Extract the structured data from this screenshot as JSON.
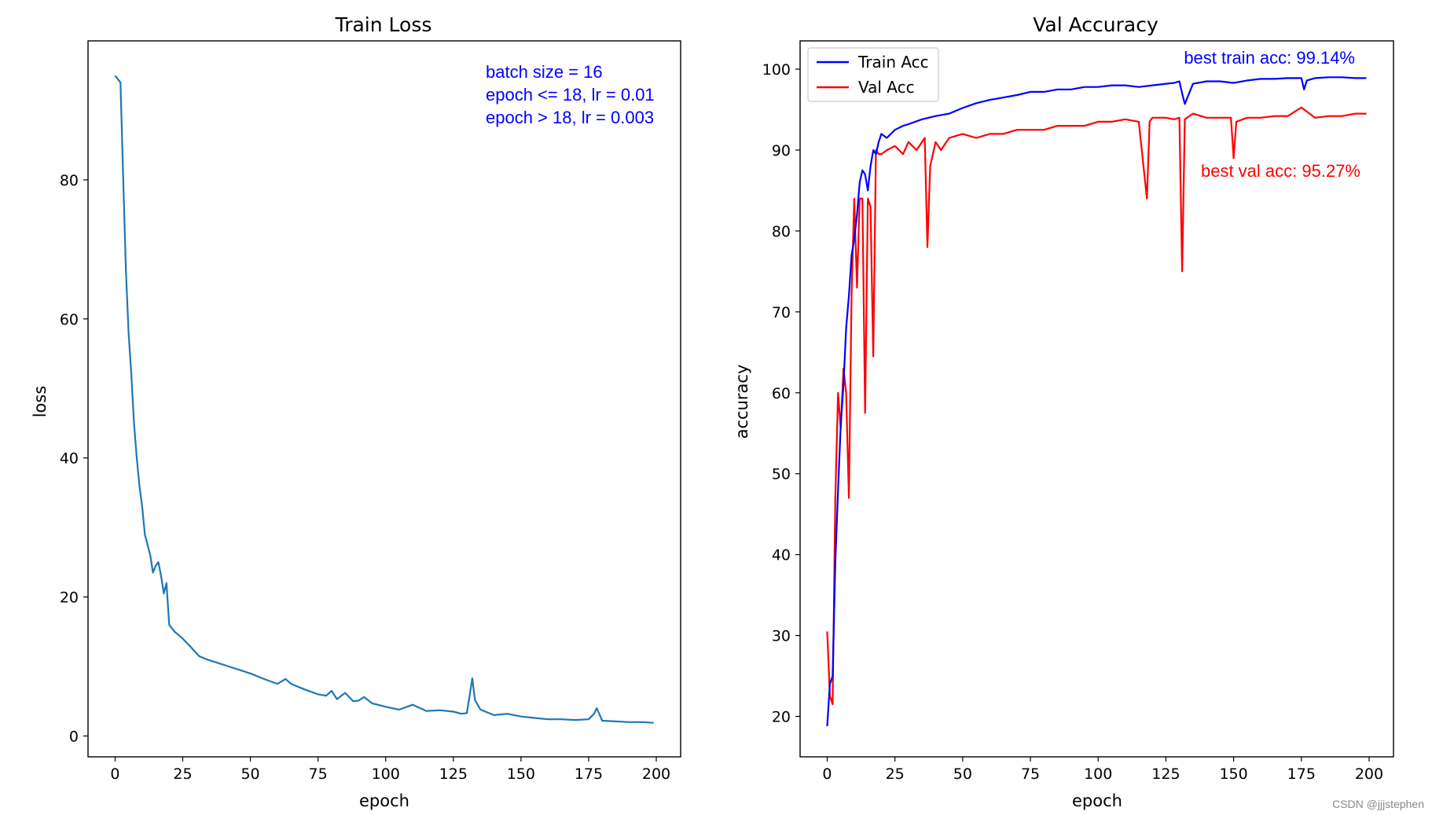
{
  "watermark": "CSDN @jjjstephen",
  "chart_data": [
    {
      "type": "line",
      "title": "Train Loss",
      "xlabel": "epoch",
      "ylabel": "loss",
      "xlim": [
        -10,
        209
      ],
      "ylim": [
        -3,
        100
      ],
      "xticks": [
        0,
        25,
        50,
        75,
        100,
        125,
        150,
        175,
        200
      ],
      "yticks": [
        0,
        20,
        40,
        60,
        80
      ],
      "annotations": [
        "batch size = 16",
        "epoch <= 18, lr = 0.01",
        "epoch > 18, lr = 0.003"
      ],
      "series": [
        {
          "name": "loss",
          "color": "#1f77b4",
          "x": [
            0,
            1,
            2,
            3,
            4,
            5,
            6,
            7,
            8,
            9,
            10,
            11,
            12,
            13,
            14,
            15,
            16,
            17,
            18,
            19,
            20,
            22,
            25,
            28,
            31,
            34,
            38,
            42,
            46,
            50,
            55,
            60,
            63,
            65,
            70,
            75,
            78,
            80,
            82,
            85,
            88,
            90,
            92,
            95,
            100,
            105,
            110,
            115,
            120,
            125,
            128,
            130,
            131,
            132,
            133,
            135,
            140,
            145,
            150,
            155,
            160,
            165,
            170,
            175,
            177,
            178,
            180,
            185,
            190,
            195,
            199
          ],
          "values": [
            95,
            94.5,
            94,
            80,
            67,
            58,
            52,
            45,
            40,
            36,
            33,
            29,
            27.5,
            26,
            23.5,
            24.5,
            25,
            23,
            20.5,
            22,
            16,
            15,
            14,
            12.8,
            11.5,
            11,
            10.5,
            10,
            9.5,
            9,
            8.2,
            7.5,
            8.2,
            7.5,
            6.7,
            6,
            5.8,
            6.5,
            5.3,
            6.2,
            5,
            5.1,
            5.6,
            4.7,
            4.2,
            3.8,
            4.5,
            3.6,
            3.7,
            3.5,
            3.2,
            3.3,
            5.8,
            8.3,
            5.2,
            3.8,
            3,
            3.2,
            2.8,
            2.6,
            2.4,
            2.4,
            2.3,
            2.4,
            3.2,
            4,
            2.2,
            2.1,
            2,
            2,
            1.9
          ]
        }
      ]
    },
    {
      "type": "line",
      "title": "Val Accuracy",
      "xlabel": "epoch",
      "ylabel": "accuracy",
      "xlim": [
        -10,
        209
      ],
      "ylim": [
        15,
        103.5
      ],
      "xticks": [
        0,
        25,
        50,
        75,
        100,
        125,
        150,
        175,
        200
      ],
      "yticks": [
        20,
        30,
        40,
        50,
        60,
        70,
        80,
        90,
        100
      ],
      "legend": {
        "position": "top-left",
        "entries": [
          "Train Acc",
          "Val Acc"
        ]
      },
      "annotations": [
        {
          "text": "best train acc: 99.14%",
          "color": "#0000ff"
        },
        {
          "text": "best val acc: 95.27%",
          "color": "#ff0000"
        }
      ],
      "series": [
        {
          "name": "Train Acc",
          "color": "#0000ff",
          "x": [
            0,
            1,
            2,
            3,
            4,
            5,
            6,
            7,
            8,
            9,
            10,
            11,
            12,
            13,
            14,
            15,
            16,
            17,
            18,
            19,
            20,
            22,
            25,
            28,
            30,
            35,
            40,
            45,
            50,
            55,
            60,
            65,
            70,
            75,
            80,
            85,
            90,
            95,
            100,
            105,
            110,
            115,
            120,
            125,
            128,
            130,
            131,
            132,
            135,
            140,
            145,
            150,
            155,
            160,
            165,
            170,
            175,
            176,
            177,
            180,
            185,
            190,
            195,
            199
          ],
          "values": [
            18.8,
            24,
            25,
            39,
            48,
            56,
            61,
            68,
            72,
            77,
            79,
            82,
            86,
            87.5,
            87,
            85,
            88,
            90,
            89.5,
            91,
            92,
            91.5,
            92.5,
            93,
            93.2,
            93.8,
            94.2,
            94.5,
            95.2,
            95.8,
            96.2,
            96.5,
            96.8,
            97.2,
            97.2,
            97.5,
            97.5,
            97.8,
            97.8,
            98,
            98,
            97.8,
            98,
            98.2,
            98.3,
            98.5,
            97,
            95.7,
            98.2,
            98.5,
            98.5,
            98.3,
            98.6,
            98.8,
            98.8,
            98.9,
            98.9,
            97.5,
            98.6,
            98.9,
            99,
            99,
            98.9,
            98.9
          ]
        },
        {
          "name": "Val Acc",
          "color": "#ff0000",
          "x": [
            0,
            1,
            2,
            3,
            4,
            5,
            6,
            7,
            8,
            9,
            10,
            11,
            12,
            13,
            14,
            15,
            16,
            17,
            18,
            19,
            20,
            22,
            25,
            28,
            30,
            33,
            36,
            37,
            38,
            40,
            42,
            45,
            50,
            55,
            60,
            65,
            70,
            75,
            80,
            85,
            90,
            95,
            100,
            105,
            110,
            115,
            118,
            119,
            120,
            125,
            128,
            130,
            131,
            132,
            135,
            140,
            145,
            149,
            150,
            151,
            155,
            160,
            165,
            170,
            175,
            180,
            185,
            190,
            195,
            199
          ],
          "values": [
            30.5,
            22.5,
            21.5,
            47,
            60,
            55.5,
            63,
            60,
            47,
            72,
            84,
            73,
            84,
            84,
            57.5,
            84,
            83,
            64.5,
            90,
            89.5,
            89.5,
            90,
            90.5,
            89.5,
            91,
            90,
            91.5,
            78,
            88,
            91,
            90,
            91.5,
            92,
            91.5,
            92,
            92,
            92.5,
            92.5,
            92.5,
            93,
            93,
            93,
            93.5,
            93.5,
            93.8,
            93.5,
            84,
            93.5,
            94,
            94,
            93.8,
            94,
            75,
            93.8,
            94.5,
            94,
            94,
            94,
            89,
            93.5,
            94,
            94,
            94.2,
            94.2,
            95.27,
            94,
            94.2,
            94.2,
            94.5,
            94.5
          ]
        }
      ]
    }
  ]
}
